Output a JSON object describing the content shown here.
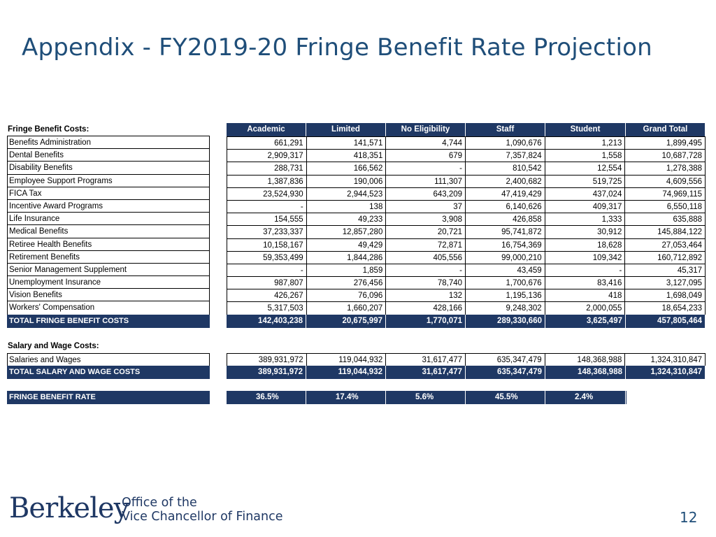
{
  "title": "Appendix - FY2019-20 Fringe Benefit Rate Projection",
  "fringe_section_label": "Fringe Benefit Costs:",
  "columns": [
    "Academic",
    "Limited",
    "No Eligibility",
    "Staff",
    "Student",
    "Grand Total"
  ],
  "fringe_rows": [
    {
      "label": "Benefits Administration",
      "values": [
        "661,291",
        "141,571",
        "4,744",
        "1,090,676",
        "1,213",
        "1,899,495"
      ]
    },
    {
      "label": "Dental Benefits",
      "values": [
        "2,909,317",
        "418,351",
        "679",
        "7,357,824",
        "1,558",
        "10,687,728"
      ]
    },
    {
      "label": "Disability Benefits",
      "values": [
        "288,731",
        "166,562",
        "-",
        "810,542",
        "12,554",
        "1,278,388"
      ]
    },
    {
      "label": "Employee Support Programs",
      "values": [
        "1,387,836",
        "190,006",
        "111,307",
        "2,400,682",
        "519,725",
        "4,609,556"
      ]
    },
    {
      "label": "FICA Tax",
      "values": [
        "23,524,930",
        "2,944,523",
        "643,209",
        "47,419,429",
        "437,024",
        "74,969,115"
      ]
    },
    {
      "label": "Incentive Award Programs",
      "values": [
        "-",
        "138",
        "37",
        "6,140,626",
        "409,317",
        "6,550,118"
      ]
    },
    {
      "label": "Life Insurance",
      "values": [
        "154,555",
        "49,233",
        "3,908",
        "426,858",
        "1,333",
        "635,888"
      ]
    },
    {
      "label": "Medical Benefits",
      "values": [
        "37,233,337",
        "12,857,280",
        "20,721",
        "95,741,872",
        "30,912",
        "145,884,122"
      ]
    },
    {
      "label": "Retiree Health Benefits",
      "values": [
        "10,158,167",
        "49,429",
        "72,871",
        "16,754,369",
        "18,628",
        "27,053,464"
      ]
    },
    {
      "label": "Retirement Benefits",
      "values": [
        "59,353,499",
        "1,844,286",
        "405,556",
        "99,000,210",
        "109,342",
        "160,712,892"
      ]
    },
    {
      "label": "Senior Management Supplement",
      "values": [
        "-",
        "1,859",
        "-",
        "43,459",
        "-",
        "45,317"
      ]
    },
    {
      "label": "Unemployment Insurance",
      "values": [
        "987,807",
        "276,456",
        "78,740",
        "1,700,676",
        "83,416",
        "3,127,095"
      ]
    },
    {
      "label": "Vision Benefits",
      "values": [
        "426,267",
        "76,096",
        "132",
        "1,195,136",
        "418",
        "1,698,049"
      ]
    },
    {
      "label": "Workers' Compensation",
      "values": [
        "5,317,503",
        "1,660,207",
        "428,166",
        "9,248,302",
        "2,000,055",
        "18,654,233"
      ]
    }
  ],
  "fringe_total": {
    "label": "TOTAL FRINGE BENEFIT COSTS",
    "values": [
      "142,403,238",
      "20,675,997",
      "1,770,071",
      "289,330,660",
      "3,625,497",
      "457,805,464"
    ]
  },
  "salary_section_label": "Salary and Wage Costs:",
  "salary_rows": [
    {
      "label": "Salaries and Wages",
      "values": [
        "389,931,972",
        "119,044,932",
        "31,617,477",
        "635,347,479",
        "148,368,988",
        "1,324,310,847"
      ]
    }
  ],
  "salary_total": {
    "label": "TOTAL SALARY AND WAGE COSTS",
    "values": [
      "389,931,972",
      "119,044,932",
      "31,617,477",
      "635,347,479",
      "148,368,988",
      "1,324,310,847"
    ]
  },
  "rate": {
    "label": "FRINGE BENEFIT RATE",
    "values": [
      "36.5%",
      "17.4%",
      "5.6%",
      "45.5%",
      "2.4%"
    ]
  },
  "footer": {
    "logo": "Berkeley",
    "office_line1": "Office of the",
    "office_line2": "Vice Chancellor of Finance",
    "page_number": "12"
  }
}
